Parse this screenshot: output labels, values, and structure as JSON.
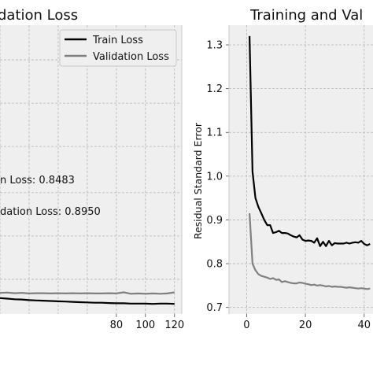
{
  "chart_data": [
    {
      "type": "line",
      "title": "dation Loss",
      "xlabel": "",
      "ylabel": "",
      "xlim": [
        0,
        125
      ],
      "ylim": [
        0,
        1
      ],
      "grid": true,
      "legend_position": "top-right",
      "x_ticks": [
        80,
        100,
        120
      ],
      "annotations": [
        "n Loss: 0.8483",
        "dation Loss: 0.8950"
      ],
      "series": [
        {
          "name": "Train Loss",
          "color": "#000000",
          "x": [
            0,
            5,
            10,
            15,
            20,
            25,
            30,
            35,
            40,
            45,
            50,
            55,
            60,
            65,
            70,
            75,
            80,
            85,
            90,
            95,
            100,
            105,
            110,
            115,
            120
          ],
          "y": [
            0.055,
            0.053,
            0.051,
            0.05,
            0.048,
            0.047,
            0.046,
            0.045,
            0.044,
            0.043,
            0.042,
            0.041,
            0.04,
            0.039,
            0.039,
            0.038,
            0.037,
            0.037,
            0.036,
            0.036,
            0.036,
            0.035,
            0.036,
            0.036,
            0.035
          ]
        },
        {
          "name": "Validation Loss",
          "color": "#808080",
          "x": [
            0,
            5,
            10,
            15,
            20,
            25,
            30,
            35,
            40,
            45,
            50,
            55,
            60,
            65,
            70,
            75,
            80,
            85,
            90,
            95,
            100,
            105,
            110,
            115,
            120
          ],
          "y": [
            0.073,
            0.074,
            0.072,
            0.073,
            0.071,
            0.072,
            0.072,
            0.071,
            0.072,
            0.071,
            0.072,
            0.071,
            0.072,
            0.071,
            0.071,
            0.072,
            0.071,
            0.075,
            0.07,
            0.071,
            0.07,
            0.071,
            0.07,
            0.071,
            0.075
          ]
        }
      ]
    },
    {
      "type": "line",
      "title": "Training and Val",
      "xlabel": "",
      "ylabel": "Residual Standard Error",
      "xlim": [
        -6,
        43
      ],
      "ylim": [
        0.685,
        1.345
      ],
      "grid": true,
      "x_ticks": [
        0,
        20,
        40
      ],
      "y_ticks": [
        0.7,
        0.8,
        0.9,
        1.0,
        1.1,
        1.2,
        1.3
      ],
      "series": [
        {
          "name": "Train",
          "color": "#000000",
          "x": [
            1,
            2,
            3,
            4,
            5,
            6,
            7,
            8,
            9,
            10,
            11,
            12,
            13,
            14,
            15,
            16,
            17,
            18,
            19,
            20,
            21,
            22,
            23,
            24,
            25,
            26,
            27,
            28,
            29,
            30,
            31,
            32,
            33,
            34,
            35,
            36,
            37,
            38,
            39,
            40,
            41,
            42
          ],
          "y": [
            1.32,
            1.01,
            0.95,
            0.93,
            0.915,
            0.9,
            0.888,
            0.888,
            0.87,
            0.872,
            0.875,
            0.87,
            0.87,
            0.869,
            0.865,
            0.862,
            0.86,
            0.865,
            0.855,
            0.852,
            0.853,
            0.852,
            0.848,
            0.858,
            0.84,
            0.85,
            0.84,
            0.852,
            0.842,
            0.847,
            0.846,
            0.846,
            0.846,
            0.848,
            0.846,
            0.848,
            0.849,
            0.848,
            0.852,
            0.845,
            0.842,
            0.845
          ]
        },
        {
          "name": "Validation",
          "color": "#808080",
          "x": [
            1,
            2,
            3,
            4,
            5,
            6,
            7,
            8,
            9,
            10,
            11,
            12,
            13,
            14,
            15,
            16,
            17,
            18,
            19,
            20,
            21,
            22,
            23,
            24,
            25,
            26,
            27,
            28,
            29,
            30,
            31,
            32,
            33,
            34,
            35,
            36,
            37,
            38,
            39,
            40,
            41,
            42
          ],
          "y": [
            0.915,
            0.8,
            0.785,
            0.776,
            0.772,
            0.77,
            0.768,
            0.765,
            0.767,
            0.763,
            0.764,
            0.758,
            0.76,
            0.758,
            0.756,
            0.755,
            0.755,
            0.757,
            0.756,
            0.754,
            0.753,
            0.751,
            0.752,
            0.75,
            0.751,
            0.75,
            0.748,
            0.749,
            0.747,
            0.748,
            0.747,
            0.747,
            0.746,
            0.745,
            0.746,
            0.745,
            0.744,
            0.743,
            0.744,
            0.743,
            0.742,
            0.743
          ]
        }
      ]
    }
  ]
}
